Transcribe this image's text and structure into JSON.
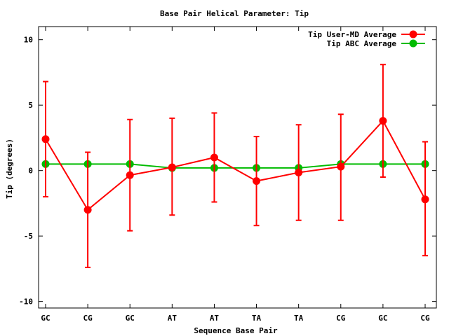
{
  "chart_data": {
    "type": "line",
    "title": "Base Pair Helical Parameter: Tip",
    "xlabel": "Sequence Base Pair",
    "ylabel": "Tip (degrees)",
    "categories": [
      "GC",
      "CG",
      "GC",
      "AT",
      "AT",
      "TA",
      "TA",
      "CG",
      "GC",
      "CG"
    ],
    "ylim": [
      -10.5,
      11
    ],
    "yticks": [
      "10",
      "5",
      "0",
      "-5",
      "-10"
    ],
    "ytick_values": [
      10,
      5,
      0,
      -5,
      -10
    ],
    "legend_position": "top-right",
    "series": [
      {
        "name": "Tip User-MD Average",
        "color": "#ff0000",
        "values": [
          2.4,
          -3.0,
          -0.35,
          0.25,
          1.0,
          -0.8,
          -0.15,
          0.3,
          3.8,
          -2.2
        ],
        "error_low": [
          -2.0,
          -7.4,
          -4.6,
          -3.4,
          -2.4,
          -4.2,
          -3.8,
          -3.8,
          -0.5,
          -6.5
        ],
        "error_high": [
          6.8,
          1.4,
          3.9,
          4.0,
          4.4,
          2.6,
          3.5,
          4.3,
          8.1,
          2.2
        ]
      },
      {
        "name": "Tip ABC Average",
        "color": "#00bb00",
        "values": [
          0.5,
          0.5,
          0.5,
          0.2,
          0.2,
          0.2,
          0.2,
          0.5,
          0.5,
          0.5
        ]
      }
    ]
  }
}
